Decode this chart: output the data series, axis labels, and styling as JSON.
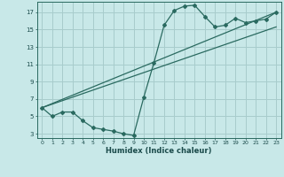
{
  "xlabel": "Humidex (Indice chaleur)",
  "background_color": "#c8e8e8",
  "grid_color": "#a8cccc",
  "line_color": "#2a6a60",
  "xlim": [
    -0.5,
    23.5
  ],
  "ylim": [
    2.5,
    18.2
  ],
  "xticks": [
    0,
    1,
    2,
    3,
    4,
    5,
    6,
    7,
    8,
    9,
    10,
    11,
    12,
    13,
    14,
    15,
    16,
    17,
    18,
    19,
    20,
    21,
    22,
    23
  ],
  "yticks": [
    3,
    5,
    7,
    9,
    11,
    13,
    15,
    17
  ],
  "line1_x": [
    0,
    1,
    2,
    3,
    4,
    5,
    6,
    7,
    8,
    9,
    10,
    11,
    12,
    13,
    14,
    15,
    16,
    17,
    18,
    19,
    20,
    21,
    22,
    23
  ],
  "line1_y": [
    6.0,
    5.0,
    5.5,
    5.5,
    4.5,
    3.7,
    3.5,
    3.3,
    3.0,
    2.8,
    7.2,
    11.2,
    15.5,
    17.2,
    17.7,
    17.8,
    16.5,
    15.3,
    15.5,
    16.3,
    15.8,
    16.0,
    16.2,
    17.0
  ],
  "line2_x": [
    0,
    23
  ],
  "line2_y": [
    6.0,
    17.0
  ],
  "line3_x": [
    0,
    23
  ],
  "line3_y": [
    6.0,
    15.3
  ]
}
